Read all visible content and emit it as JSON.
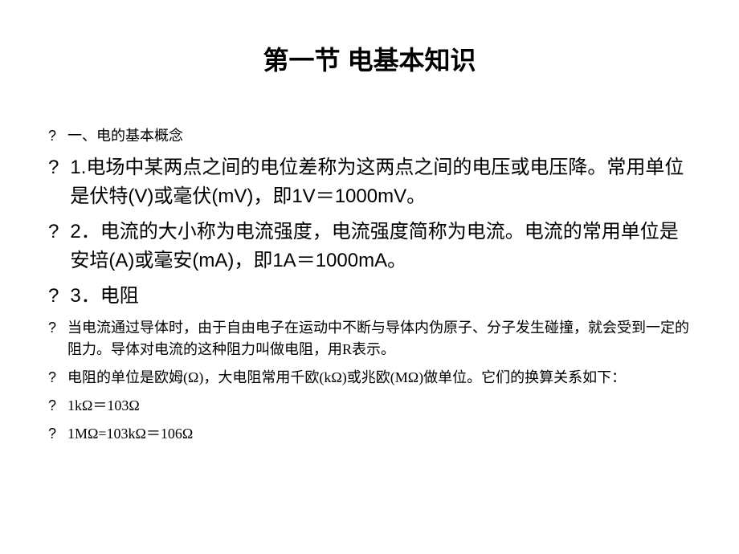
{
  "title": "第一节  电基本知识",
  "lines": [
    {
      "text": "一、电的基本概念",
      "size": "small",
      "bulletSize": "small"
    },
    {
      "text": "1.电场中某两点之间的电位差称为这两点之间的电压或电压降。常用单位是伏特(V)或毫伏(mV)，即1V＝1000mV。",
      "size": "large",
      "bulletSize": "large"
    },
    {
      "text": "2．电流的大小称为电流强度，电流强度简称为电流。电流的常用单位是安培(A)或毫安(mA)，即1A＝1000mA。",
      "size": "large",
      "bulletSize": "large"
    },
    {
      "text": "3．电阻",
      "size": "large",
      "bulletSize": "large"
    },
    {
      "text": "    当电流通过导体时，由于自由电子在运动中不断与导体内伪原子、分子发生碰撞，就会受到一定的阻力。导体对电流的这种阻力叫做电阻，用R表示。",
      "size": "small",
      "bulletSize": "small"
    },
    {
      "text": "    电阻的单位是欧姆(Ω)，大电阻常用千欧(kΩ)或兆欧(MΩ)做单位。它们的换算关系如下：",
      "size": "small",
      "bulletSize": "small"
    },
    {
      "text": "1kΩ＝103Ω",
      "size": "small",
      "bulletSize": "small"
    },
    {
      "text": "1MΩ=103kΩ＝106Ω",
      "size": "small",
      "bulletSize": "small"
    }
  ],
  "bulletChar": "?"
}
